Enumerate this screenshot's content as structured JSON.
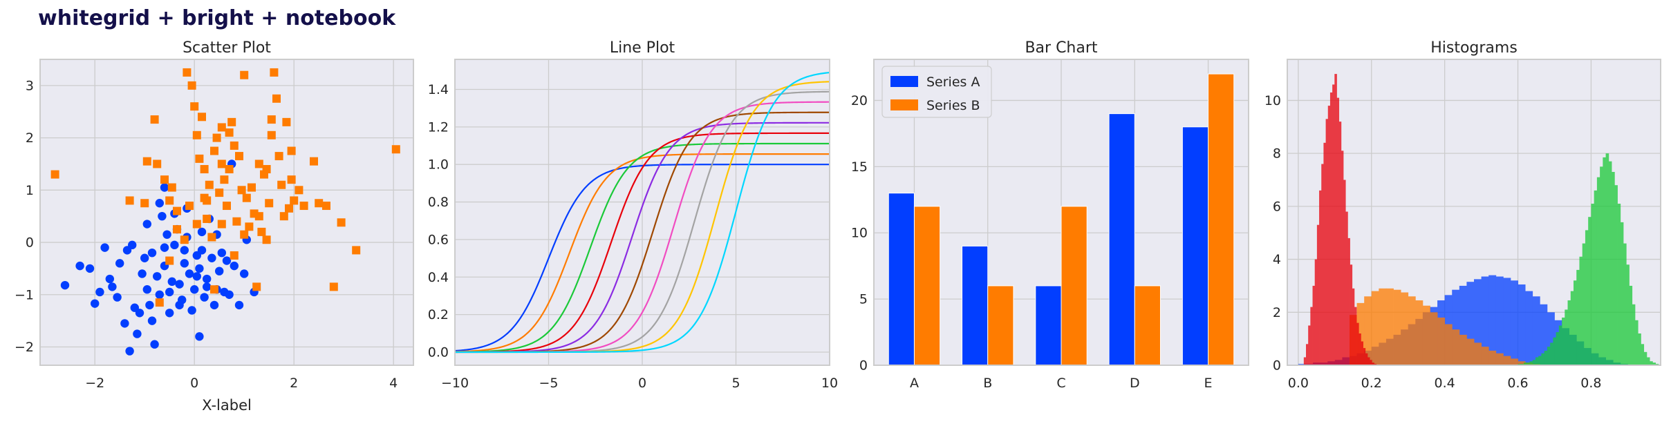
{
  "suptitle": "whitegrid + bright + notebook",
  "colors": {
    "blue": "#023eff",
    "orange": "#ff7c00",
    "green": "#1ac938",
    "red": "#e8000b",
    "purple": "#8b2be2",
    "brown": "#9f4800",
    "pink": "#f14cc1",
    "gray": "#a3a3a3",
    "yellow": "#ffc400",
    "cyan": "#00d7ff",
    "axes_bg": "#eaeaf2",
    "grid": "#cccccc",
    "spine": "#cccccc"
  },
  "chart_data": [
    {
      "type": "scatter",
      "title": "Scatter Plot",
      "xlabel": "X-label",
      "ylabel": "",
      "xlim": [
        -3.1,
        4.4
      ],
      "ylim": [
        -2.35,
        3.5
      ],
      "xticks": [
        -2,
        0,
        2,
        4
      ],
      "yticks": [
        -2,
        -1,
        0,
        1,
        2,
        3
      ],
      "grid": true,
      "series": [
        {
          "color": "blue",
          "marker": "circle",
          "points": [
            [
              -2.6,
              -0.82
            ],
            [
              -2.0,
              -1.17
            ],
            [
              -2.1,
              -0.5
            ],
            [
              -1.8,
              -0.1
            ],
            [
              -1.7,
              -0.7
            ],
            [
              -1.65,
              -0.85
            ],
            [
              -1.5,
              -0.4
            ],
            [
              -1.4,
              -1.55
            ],
            [
              -1.3,
              -2.08
            ],
            [
              -1.2,
              -1.25
            ],
            [
              -1.15,
              -1.75
            ],
            [
              -1.1,
              -1.35
            ],
            [
              -1.05,
              -0.6
            ],
            [
              -1.0,
              -0.3
            ],
            [
              -0.95,
              -0.9
            ],
            [
              -0.9,
              -1.2
            ],
            [
              -0.85,
              -1.5
            ],
            [
              -0.8,
              -1.95
            ],
            [
              -0.75,
              -0.65
            ],
            [
              -0.7,
              -1.0
            ],
            [
              -0.65,
              0.5
            ],
            [
              -0.6,
              -0.45
            ],
            [
              -0.55,
              0.15
            ],
            [
              -0.5,
              -1.35
            ],
            [
              -0.45,
              -0.75
            ],
            [
              -0.4,
              -0.05
            ],
            [
              -0.35,
              0.25
            ],
            [
              -0.3,
              -0.8
            ],
            [
              -0.25,
              -1.1
            ],
            [
              -0.2,
              -0.4
            ],
            [
              -0.15,
              0.1
            ],
            [
              -0.1,
              -0.6
            ],
            [
              -0.05,
              -1.3
            ],
            [
              0.0,
              -0.9
            ],
            [
              0.05,
              -0.25
            ],
            [
              0.1,
              -0.5
            ],
            [
              0.15,
              0.2
            ],
            [
              0.2,
              -1.05
            ],
            [
              0.25,
              -0.7
            ],
            [
              0.3,
              0.45
            ],
            [
              0.35,
              -0.3
            ],
            [
              0.4,
              -1.2
            ],
            [
              0.45,
              -0.9
            ],
            [
              0.5,
              -0.55
            ],
            [
              0.55,
              -0.2
            ],
            [
              0.6,
              -0.95
            ],
            [
              0.7,
              -1.0
            ],
            [
              0.75,
              1.5
            ],
            [
              0.8,
              -0.45
            ],
            [
              0.9,
              -1.2
            ],
            [
              1.0,
              -0.6
            ],
            [
              1.05,
              0.05
            ],
            [
              1.2,
              -0.95
            ],
            [
              -1.25,
              -0.05
            ],
            [
              -0.95,
              0.35
            ],
            [
              -0.7,
              0.75
            ],
            [
              -0.6,
              1.05
            ],
            [
              -0.4,
              0.55
            ],
            [
              -0.2,
              -0.15
            ],
            [
              0.05,
              -0.65
            ],
            [
              0.25,
              -0.85
            ],
            [
              -0.85,
              -0.2
            ],
            [
              -1.35,
              -0.15
            ],
            [
              -0.5,
              -0.95
            ],
            [
              -0.3,
              -1.2
            ],
            [
              0.1,
              -1.8
            ],
            [
              -0.15,
              0.65
            ],
            [
              0.15,
              -0.15
            ],
            [
              0.45,
              0.15
            ],
            [
              -1.55,
              -1.05
            ],
            [
              -2.3,
              -0.45
            ],
            [
              -1.9,
              -0.95
            ],
            [
              -0.6,
              -0.1
            ],
            [
              0.65,
              -0.35
            ]
          ]
        },
        {
          "color": "orange",
          "marker": "square",
          "points": [
            [
              -2.8,
              1.3
            ],
            [
              -1.3,
              0.8
            ],
            [
              -1.0,
              0.75
            ],
            [
              -0.95,
              1.55
            ],
            [
              -0.8,
              2.35
            ],
            [
              -0.75,
              1.5
            ],
            [
              -0.6,
              1.2
            ],
            [
              -0.5,
              0.8
            ],
            [
              -0.45,
              1.05
            ],
            [
              -0.35,
              0.6
            ],
            [
              -0.2,
              0.05
            ],
            [
              -0.15,
              3.25
            ],
            [
              -0.1,
              0.7
            ],
            [
              -0.05,
              3.0
            ],
            [
              0.0,
              2.6
            ],
            [
              0.05,
              2.05
            ],
            [
              0.1,
              1.6
            ],
            [
              0.15,
              2.4
            ],
            [
              0.2,
              0.85
            ],
            [
              0.25,
              0.45
            ],
            [
              0.3,
              1.1
            ],
            [
              0.35,
              0.1
            ],
            [
              0.4,
              1.75
            ],
            [
              0.45,
              2.0
            ],
            [
              0.5,
              0.95
            ],
            [
              0.55,
              1.5
            ],
            [
              0.6,
              1.2
            ],
            [
              0.65,
              0.7
            ],
            [
              0.7,
              2.1
            ],
            [
              0.75,
              2.3
            ],
            [
              0.8,
              1.85
            ],
            [
              0.85,
              0.4
            ],
            [
              0.9,
              1.65
            ],
            [
              0.95,
              1.0
            ],
            [
              1.0,
              3.2
            ],
            [
              1.05,
              0.85
            ],
            [
              1.1,
              0.3
            ],
            [
              1.15,
              1.05
            ],
            [
              1.2,
              0.55
            ],
            [
              1.25,
              -0.85
            ],
            [
              1.3,
              0.5
            ],
            [
              1.35,
              0.2
            ],
            [
              1.4,
              1.3
            ],
            [
              1.45,
              1.4
            ],
            [
              1.5,
              0.75
            ],
            [
              1.55,
              2.05
            ],
            [
              1.6,
              3.25
            ],
            [
              1.65,
              2.75
            ],
            [
              1.7,
              1.65
            ],
            [
              1.75,
              1.1
            ],
            [
              1.8,
              0.5
            ],
            [
              1.85,
              2.3
            ],
            [
              1.9,
              0.65
            ],
            [
              1.95,
              1.2
            ],
            [
              2.0,
              0.8
            ],
            [
              2.1,
              1.0
            ],
            [
              2.2,
              0.7
            ],
            [
              2.4,
              1.55
            ],
            [
              2.5,
              0.75
            ],
            [
              2.65,
              0.7
            ],
            [
              2.8,
              -0.85
            ],
            [
              2.95,
              0.38
            ],
            [
              3.25,
              -0.15
            ],
            [
              4.05,
              1.78
            ],
            [
              -0.5,
              -0.35
            ],
            [
              0.4,
              -0.9
            ],
            [
              0.8,
              -0.25
            ],
            [
              -0.35,
              0.25
            ],
            [
              0.05,
              0.35
            ],
            [
              0.55,
              0.35
            ],
            [
              1.45,
              0.05
            ],
            [
              0.25,
              0.8
            ],
            [
              1.0,
              0.15
            ],
            [
              -0.7,
              -1.15
            ],
            [
              0.7,
              1.4
            ],
            [
              1.95,
              1.75
            ],
            [
              1.55,
              2.35
            ],
            [
              1.3,
              1.5
            ],
            [
              0.2,
              1.4
            ],
            [
              0.55,
              2.2
            ]
          ]
        }
      ]
    },
    {
      "type": "line",
      "title": "Line Plot",
      "xlabel": "",
      "ylabel": "",
      "xlim": [
        -10,
        10
      ],
      "ylim": [
        -0.07,
        1.56
      ],
      "xticks": [
        -10,
        -5,
        0,
        5,
        10
      ],
      "yticks": [
        0.0,
        0.2,
        0.4,
        0.6,
        0.8,
        1.0,
        1.2,
        1.4
      ],
      "grid": true,
      "function": "y = amplitude / (1 + exp(-(x - center)))",
      "series": [
        {
          "color": "blue",
          "center": -5,
          "amplitude": 1.0
        },
        {
          "color": "orange",
          "center": -3.889,
          "amplitude": 1.0556
        },
        {
          "color": "green",
          "center": -2.778,
          "amplitude": 1.1111
        },
        {
          "color": "red",
          "center": -1.667,
          "amplitude": 1.1667
        },
        {
          "color": "purple",
          "center": -0.556,
          "amplitude": 1.2222
        },
        {
          "color": "brown",
          "center": 0.556,
          "amplitude": 1.2778
        },
        {
          "color": "pink",
          "center": 1.667,
          "amplitude": 1.3333
        },
        {
          "color": "gray",
          "center": 2.778,
          "amplitude": 1.3889
        },
        {
          "color": "yellow",
          "center": 3.889,
          "amplitude": 1.4444
        },
        {
          "color": "cyan",
          "center": 5,
          "amplitude": 1.5
        }
      ]
    },
    {
      "type": "bar",
      "title": "Bar Chart",
      "xlabel": "",
      "ylabel": "",
      "categories": [
        "A",
        "B",
        "C",
        "D",
        "E"
      ],
      "ylim": [
        0,
        23.1
      ],
      "yticks": [
        0,
        5,
        10,
        15,
        20
      ],
      "grid": true,
      "legend": "top-left",
      "series": [
        {
          "name": "Series A",
          "color": "blue",
          "values": [
            13,
            9,
            6,
            19,
            18
          ]
        },
        {
          "name": "Series B",
          "color": "orange",
          "values": [
            12,
            6,
            12,
            6,
            22
          ]
        }
      ]
    },
    {
      "type": "histogram",
      "title": "Histograms",
      "xlabel": "",
      "ylabel": "",
      "xlim": [
        -0.03,
        0.99
      ],
      "ylim": [
        0,
        11.55
      ],
      "xticks": [
        0.0,
        0.2,
        0.4,
        0.6,
        0.8
      ],
      "xtick_labels": [
        "0.0",
        "0.2",
        "0.4",
        "0.6",
        "0.8"
      ],
      "yticks": [
        0,
        2,
        4,
        6,
        8,
        10
      ],
      "grid": true,
      "opacity": 0.75,
      "series": [
        {
          "color": "blue",
          "start": 0.0,
          "bin_width": 0.02,
          "counts": [
            0.05,
            0.05,
            0.1,
            0.1,
            0.15,
            0.2,
            0.3,
            0.35,
            0.45,
            0.55,
            0.7,
            0.85,
            1.0,
            1.15,
            1.35,
            1.55,
            1.75,
            2.0,
            2.2,
            2.45,
            2.65,
            2.85,
            3.0,
            3.15,
            3.25,
            3.35,
            3.4,
            3.35,
            3.3,
            3.2,
            3.05,
            2.8,
            2.6,
            2.3,
            2.0,
            1.7,
            1.4,
            1.15,
            0.9,
            0.65,
            0.45,
            0.3,
            0.2,
            0.1,
            0.05
          ]
        },
        {
          "color": "orange",
          "start": 0.14,
          "bin_width": 0.02,
          "counts": [
            1.9,
            2.35,
            2.6,
            2.8,
            2.9,
            2.9,
            2.85,
            2.75,
            2.6,
            2.45,
            2.25,
            2.0,
            1.8,
            1.55,
            1.35,
            1.15,
            1.0,
            0.85,
            0.7,
            0.55,
            0.45,
            0.35,
            0.25,
            0.15,
            0.1,
            0.05
          ]
        },
        {
          "color": "green",
          "start": 0.6,
          "bin_width": 0.008,
          "counts": [
            0.05,
            0.05,
            0.1,
            0.1,
            0.15,
            0.2,
            0.3,
            0.35,
            0.45,
            0.55,
            0.7,
            0.85,
            1.05,
            1.25,
            1.5,
            1.8,
            2.1,
            2.45,
            2.8,
            3.2,
            3.6,
            4.1,
            4.6,
            5.1,
            5.6,
            6.1,
            6.6,
            7.1,
            7.5,
            7.85,
            8.0,
            7.7,
            7.3,
            6.8,
            6.1,
            5.4,
            4.6,
            3.8,
            3.0,
            2.3,
            1.7,
            1.2,
            0.8,
            0.5,
            0.3,
            0.15,
            0.1,
            0.05
          ]
        },
        {
          "color": "red",
          "start": 0.015,
          "bin_width": 0.006,
          "counts": [
            0.3,
            0.8,
            1.5,
            2.2,
            3.0,
            4.0,
            5.3,
            6.6,
            7.6,
            8.4,
            9.3,
            9.8,
            10.3,
            10.6,
            11.0,
            10.1,
            9.2,
            8.1,
            7.0,
            5.8,
            4.8,
            3.8,
            2.9,
            2.2,
            1.6,
            1.2,
            0.9,
            0.65,
            0.45,
            0.3,
            0.2,
            0.1,
            0.05
          ]
        }
      ]
    }
  ]
}
